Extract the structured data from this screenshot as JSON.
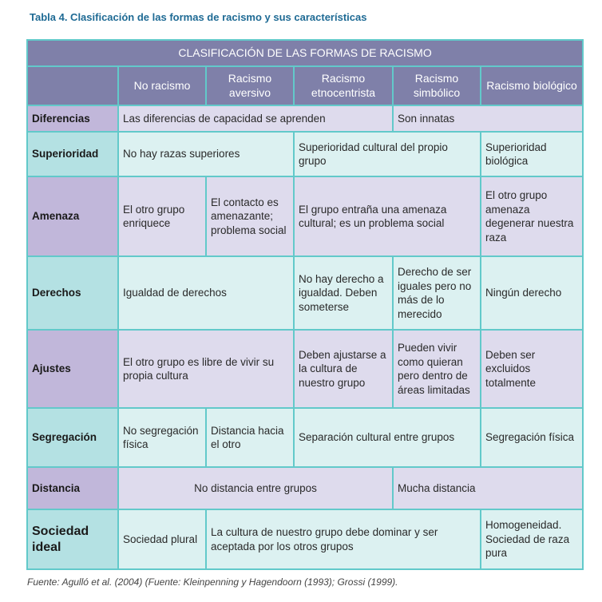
{
  "caption": "Tabla 4. Clasificación de las formas de racismo y sus características",
  "table": {
    "title": "CLASIFICACIÓN DE LAS FORMAS DE RACISMO",
    "columns": [
      "",
      "No racismo",
      "Racismo aversivo",
      "Racismo etnocentrista",
      "Racismo simbólico",
      "Racismo biológico"
    ],
    "rows": [
      {
        "label": "Diferencias",
        "cells": [
          {
            "text": "Las diferencias de capacidad se aprenden",
            "span": 3
          },
          {
            "text": "Son innatas",
            "span": 2
          }
        ]
      },
      {
        "label": "Superioridad",
        "cells": [
          {
            "text": "No hay razas superiores",
            "span": 2
          },
          {
            "text": "Superioridad cultural del propio grupo",
            "span": 2
          },
          {
            "text": "Superioridad biológica",
            "span": 1
          }
        ]
      },
      {
        "label": "Amenaza",
        "cells": [
          {
            "text": "El otro grupo enriquece",
            "span": 1
          },
          {
            "text": "El contacto es amenazante; problema social",
            "span": 1
          },
          {
            "text": "El grupo entraña una amenaza cultural; es un problema social",
            "span": 2
          },
          {
            "text": "El otro grupo amenaza degenerar nuestra raza",
            "span": 1
          }
        ]
      },
      {
        "label": "Derechos",
        "cells": [
          {
            "text": "Igualdad de derechos",
            "span": 2
          },
          {
            "text": "No hay derecho a igualdad. Deben someterse",
            "span": 1
          },
          {
            "text": "Derecho de ser iguales pero no más de lo merecido",
            "span": 1
          },
          {
            "text": "Ningún derecho",
            "span": 1
          }
        ]
      },
      {
        "label": "Ajustes",
        "cells": [
          {
            "text": "El otro grupo es libre de vivir su propia cultura",
            "span": 2
          },
          {
            "text": "Deben ajustarse a la cultura de nuestro grupo",
            "span": 1
          },
          {
            "text": "Pueden vivir como quieran pero dentro de áreas limitadas",
            "span": 1
          },
          {
            "text": "Deben ser excluidos totalmente",
            "span": 1
          }
        ]
      },
      {
        "label": "Segregación",
        "cells": [
          {
            "text": "No segregación física",
            "span": 1
          },
          {
            "text": "Distancia hacia el otro",
            "span": 1
          },
          {
            "text": "Separación cultural entre grupos",
            "span": 2
          },
          {
            "text": "Segregación física",
            "span": 1
          }
        ]
      },
      {
        "label": "Distancia",
        "cells": [
          {
            "text": "No distancia entre grupos",
            "span": 3,
            "align": "center"
          },
          {
            "text": "Mucha distancia",
            "span": 2
          }
        ]
      },
      {
        "label": "Sociedad ideal",
        "cells": [
          {
            "text": "Sociedad plural",
            "span": 1
          },
          {
            "text": "La cultura de nuestro grupo debe dominar y ser aceptada por los otros grupos",
            "span": 3
          },
          {
            "text": "Homogeneidad. Sociedad de raza pura",
            "span": 1
          }
        ]
      }
    ]
  },
  "source": "Fuente: Agulló et al. (2004) (Fuente: Kleinpenning y Hagendoorn (1993); Grossi (1999).",
  "colors": {
    "header": "#7f80a9",
    "label_purple": "#c1b7da",
    "cell_purple": "#dedbed",
    "label_teal": "#b4e1e3",
    "cell_teal": "#dcf1f1",
    "border": "#62c9ca",
    "caption": "#1e6a94"
  }
}
